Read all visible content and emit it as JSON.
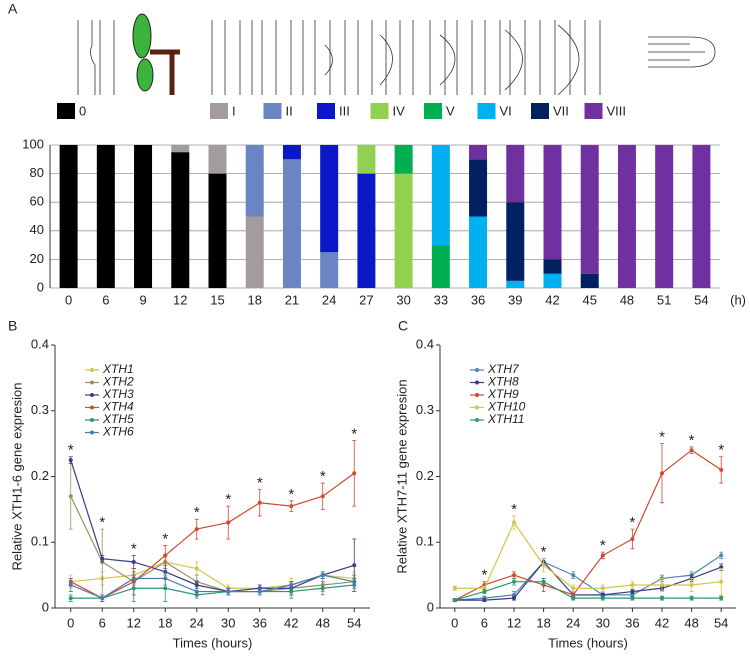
{
  "chart_data": [
    {
      "type": "stacked_bar",
      "panel": "A",
      "xlabel": "(h)",
      "categories": [
        "0",
        "6",
        "9",
        "12",
        "15",
        "18",
        "21",
        "24",
        "27",
        "30",
        "33",
        "36",
        "39",
        "42",
        "45",
        "48",
        "51",
        "54"
      ],
      "series": [
        {
          "name": "0",
          "color": "#000000",
          "values": [
            100,
            100,
            100,
            95,
            80,
            0,
            0,
            0,
            0,
            0,
            0,
            0,
            0,
            0,
            0,
            0,
            0,
            0
          ]
        },
        {
          "name": "I",
          "color": "#a39c9c",
          "values": [
            0,
            0,
            0,
            5,
            20,
            50,
            0,
            0,
            0,
            0,
            0,
            0,
            0,
            0,
            0,
            0,
            0,
            0
          ]
        },
        {
          "name": "II",
          "color": "#6a85c4",
          "values": [
            0,
            0,
            0,
            0,
            0,
            50,
            90,
            25,
            0,
            0,
            0,
            0,
            0,
            0,
            0,
            0,
            0,
            0
          ]
        },
        {
          "name": "III",
          "color": "#0a18c8",
          "values": [
            0,
            0,
            0,
            0,
            0,
            0,
            10,
            75,
            80,
            0,
            0,
            0,
            0,
            0,
            0,
            0,
            0,
            0
          ]
        },
        {
          "name": "IV",
          "color": "#92d050",
          "values": [
            0,
            0,
            0,
            0,
            0,
            0,
            0,
            0,
            20,
            80,
            0,
            0,
            0,
            0,
            0,
            0,
            0,
            0
          ]
        },
        {
          "name": "V",
          "color": "#00b050",
          "values": [
            0,
            0,
            0,
            0,
            0,
            0,
            0,
            0,
            0,
            20,
            30,
            0,
            0,
            0,
            0,
            0,
            0,
            0
          ]
        },
        {
          "name": "VI",
          "color": "#00b0f0",
          "values": [
            0,
            0,
            0,
            0,
            0,
            0,
            0,
            0,
            0,
            0,
            70,
            50,
            5,
            10,
            0,
            0,
            0,
            0
          ]
        },
        {
          "name": "VII",
          "color": "#002060",
          "values": [
            0,
            0,
            0,
            0,
            0,
            0,
            0,
            0,
            0,
            0,
            0,
            40,
            55,
            10,
            10,
            0,
            0,
            0
          ]
        },
        {
          "name": "VIII",
          "color": "#7030a0",
          "values": [
            0,
            0,
            0,
            0,
            0,
            0,
            0,
            0,
            0,
            0,
            0,
            10,
            40,
            80,
            90,
            100,
            100,
            100
          ]
        }
      ],
      "ylim": [
        0,
        100
      ],
      "yticks": [
        0,
        20,
        40,
        60,
        80,
        100
      ],
      "grid": true
    },
    {
      "type": "line",
      "panel": "B",
      "ylabel": "Relative XTH1-6 gene expresion",
      "xlabel": "Times (hours)",
      "x": [
        0,
        6,
        12,
        18,
        24,
        30,
        36,
        42,
        48,
        54
      ],
      "xlim": [
        -3,
        57
      ],
      "xticks": [
        0,
        6,
        12,
        18,
        24,
        30,
        36,
        42,
        48,
        54
      ],
      "ylim": [
        0,
        0.4
      ],
      "yticks": [
        0,
        0.1,
        0.2,
        0.3,
        0.4
      ],
      "marker_text": "*",
      "significant": [
        0,
        6,
        12,
        18,
        24,
        30,
        36,
        42,
        48,
        54
      ],
      "series": [
        {
          "name": "XTH1",
          "color": "#d2c64a",
          "values": [
            0.04,
            0.045,
            0.05,
            0.07,
            0.06,
            0.03,
            0.03,
            0.035,
            0.05,
            0.045
          ],
          "errors": [
            0.01,
            0.01,
            0.01,
            0.01,
            0.01,
            0.005,
            0.005,
            0.01,
            0.005,
            0.01
          ]
        },
        {
          "name": "XTH2",
          "color": "#9a9062",
          "values": [
            0.17,
            0.07,
            0.04,
            0.07,
            0.04,
            0.025,
            0.025,
            0.03,
            0.035,
            0.04
          ],
          "errors": [
            0.05,
            0.05,
            0.02,
            0.01,
            0.01,
            0.005,
            0.005,
            0.01,
            0.01,
            0.01
          ]
        },
        {
          "name": "XTH3",
          "color": "#3a3a8a",
          "values": [
            0.225,
            0.075,
            0.07,
            0.055,
            0.035,
            0.025,
            0.03,
            0.03,
            0.05,
            0.065
          ],
          "errors": [
            0.005,
            0.005,
            0.01,
            0.01,
            0.005,
            0.005,
            0.005,
            0.01,
            0.005,
            0.04
          ]
        },
        {
          "name": "XTH4",
          "color": "#d04a30",
          "values": [
            0.04,
            0.015,
            0.04,
            0.08,
            0.12,
            0.13,
            0.16,
            0.155,
            0.17,
            0.205
          ],
          "errors": [
            0.005,
            0.005,
            0.02,
            0.015,
            0.015,
            0.025,
            0.02,
            0.008,
            0.02,
            0.05
          ]
        },
        {
          "name": "XTH5",
          "color": "#2a9a70",
          "values": [
            0.015,
            0.015,
            0.03,
            0.03,
            0.02,
            0.025,
            0.025,
            0.025,
            0.03,
            0.035
          ],
          "errors": [
            0.005,
            0.005,
            0.02,
            0.02,
            0.005,
            0.005,
            0.005,
            0.01,
            0.01,
            0.01
          ]
        },
        {
          "name": "XTH6",
          "color": "#4a7ab0",
          "values": [
            0.035,
            0.015,
            0.045,
            0.045,
            0.025,
            0.025,
            0.025,
            0.035,
            0.05,
            0.04
          ],
          "errors": [
            0.01,
            0.005,
            0.01,
            0.01,
            0.005,
            0.005,
            0.005,
            0.005,
            0.005,
            0.01
          ]
        }
      ]
    },
    {
      "type": "line",
      "panel": "C",
      "ylabel": "Relative XTH7-11 gene expresion",
      "xlabel": "Times (hours)",
      "x": [
        0,
        6,
        12,
        18,
        24,
        30,
        36,
        42,
        48,
        54
      ],
      "xlim": [
        -3,
        57
      ],
      "xticks": [
        0,
        6,
        12,
        18,
        24,
        30,
        36,
        42,
        48,
        54
      ],
      "ylim": [
        0,
        0.4
      ],
      "yticks": [
        0,
        0.1,
        0.2,
        0.3,
        0.4
      ],
      "marker_text": "*",
      "significant": [
        6,
        12,
        18,
        30,
        36,
        42,
        48,
        54
      ],
      "series": [
        {
          "name": "XTH7",
          "color": "#4a8ab0",
          "values": [
            0.012,
            0.015,
            0.02,
            0.07,
            0.05,
            0.02,
            0.02,
            0.045,
            0.05,
            0.08
          ],
          "errors": [
            0.002,
            0.003,
            0.005,
            0.005,
            0.005,
            0.003,
            0.003,
            0.005,
            0.005,
            0.005
          ]
        },
        {
          "name": "XTH8",
          "color": "#3a3a8a",
          "values": [
            0.012,
            0.012,
            0.015,
            0.07,
            0.02,
            0.02,
            0.025,
            0.03,
            0.045,
            0.062
          ],
          "errors": [
            0.002,
            0.002,
            0.003,
            0.005,
            0.003,
            0.003,
            0.003,
            0.003,
            0.005,
            0.005
          ]
        },
        {
          "name": "XTH9",
          "color": "#d04a30",
          "values": [
            0.012,
            0.035,
            0.05,
            0.035,
            0.02,
            0.08,
            0.105,
            0.205,
            0.24,
            0.21
          ],
          "errors": [
            0.002,
            0.005,
            0.005,
            0.01,
            0.005,
            0.005,
            0.015,
            0.045,
            0.005,
            0.02
          ]
        },
        {
          "name": "XTH10",
          "color": "#d2c64a",
          "values": [
            0.03,
            0.03,
            0.13,
            0.065,
            0.03,
            0.03,
            0.035,
            0.035,
            0.035,
            0.04
          ],
          "errors": [
            0.003,
            0.003,
            0.01,
            0.01,
            0.005,
            0.005,
            0.005,
            0.01,
            0.01,
            0.02
          ]
        },
        {
          "name": "XTH11",
          "color": "#2a9a70",
          "values": [
            0.012,
            0.025,
            0.04,
            0.04,
            0.015,
            0.015,
            0.015,
            0.015,
            0.015,
            0.015
          ],
          "errors": [
            0.002,
            0.003,
            0.005,
            0.005,
            0.003,
            0.003,
            0.003,
            0.003,
            0.003,
            0.003
          ]
        }
      ]
    }
  ]
}
